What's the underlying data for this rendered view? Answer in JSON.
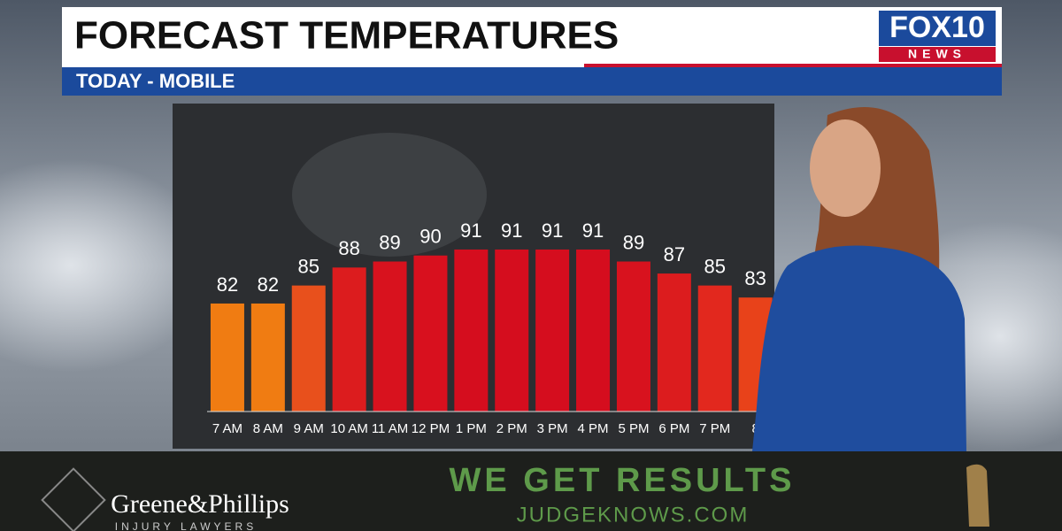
{
  "header": {
    "title": "FORECAST TEMPERATURES",
    "subtitle": "TODAY - MOBILE",
    "logo_top": "FOX10",
    "logo_bottom": "NEWS"
  },
  "chart_data": {
    "type": "bar",
    "categories": [
      "7 AM",
      "8 AM",
      "9 AM",
      "10 AM",
      "11 AM",
      "12 PM",
      "1 PM",
      "2 PM",
      "3 PM",
      "4 PM",
      "5 PM",
      "6 PM",
      "7 PM",
      "8"
    ],
    "values": [
      82,
      82,
      85,
      88,
      89,
      90,
      91,
      91,
      91,
      91,
      89,
      87,
      85,
      83
    ],
    "colors": [
      "#f07c12",
      "#f07c12",
      "#e8501c",
      "#dc1c1e",
      "#d8121e",
      "#d8101e",
      "#d50d1e",
      "#d50d1e",
      "#d50d1e",
      "#d50d1e",
      "#d8121e",
      "#dc1c1e",
      "#e2281e",
      "#e8421a"
    ],
    "ylim": [
      64,
      114
    ]
  },
  "ad": {
    "brand": "Greene&Phillips",
    "brand_sub": "INJURY LAWYERS",
    "slogan": "WE GET RESULTS",
    "site": "JUDGEKNOWS.COM"
  }
}
